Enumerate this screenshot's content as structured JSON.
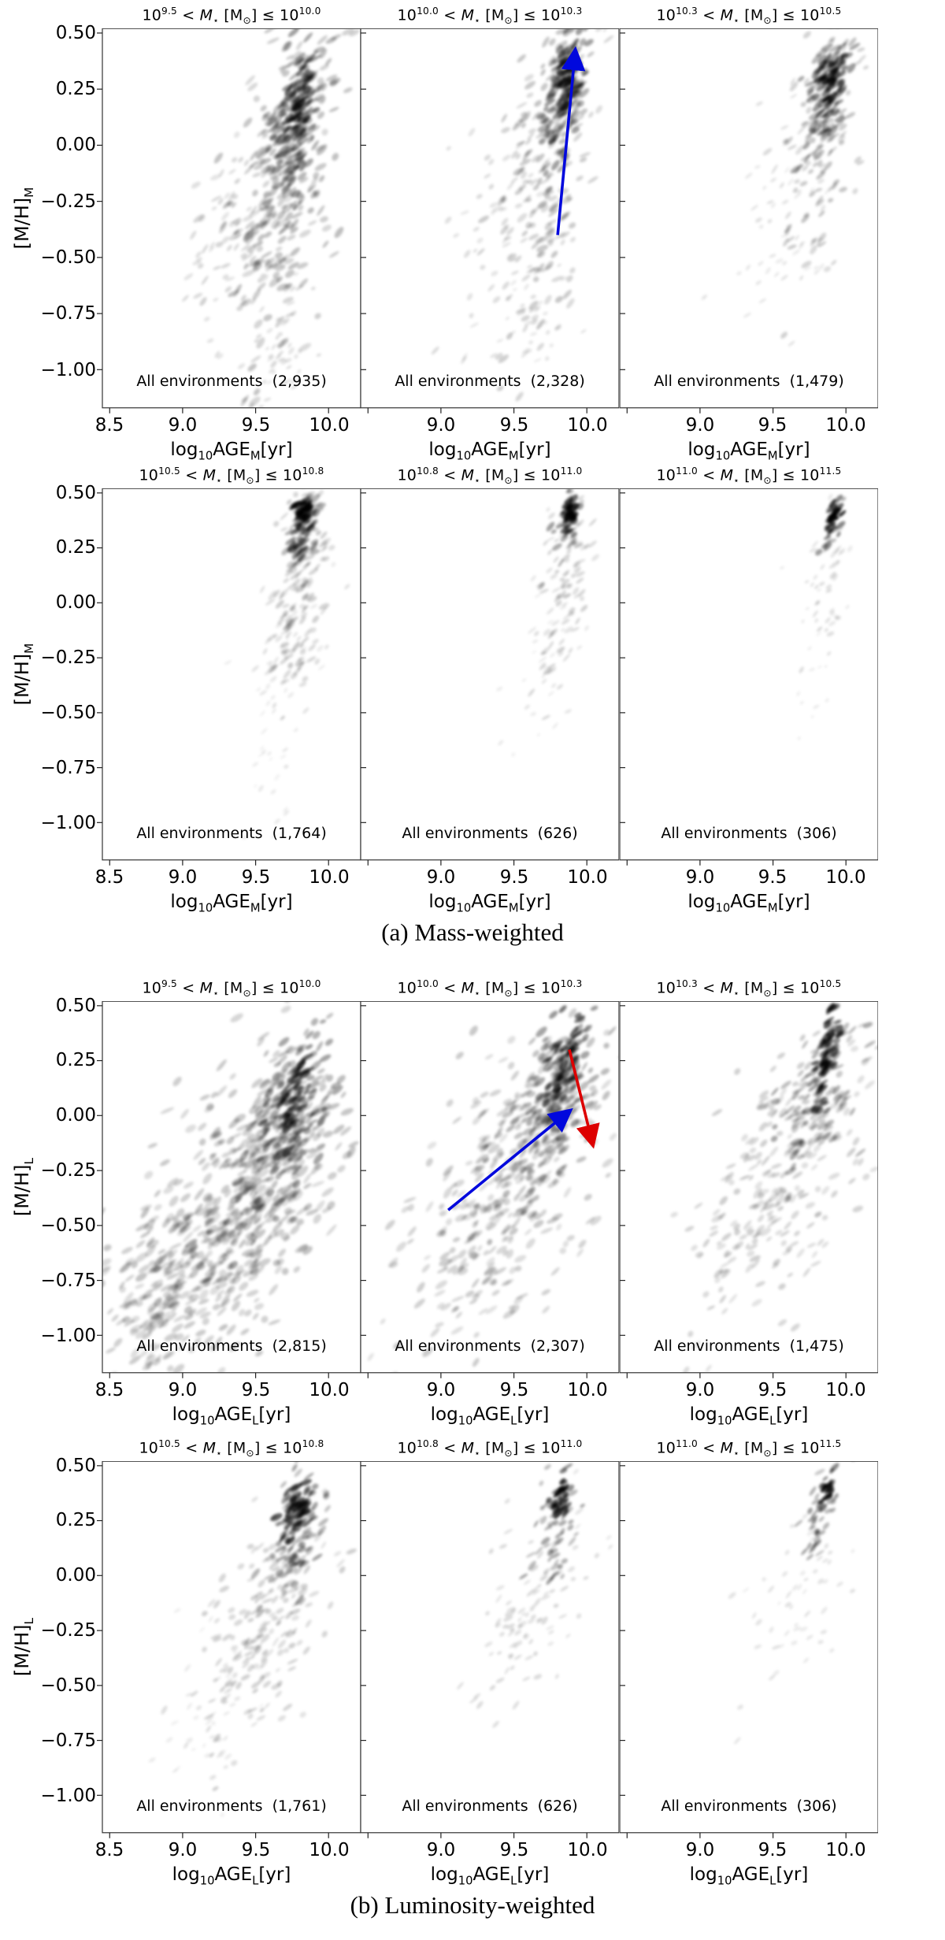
{
  "chart_data": {
    "type": "density-contour-grid",
    "annotation_label": "All environments",
    "axes": {
      "x_range": [
        8.45,
        10.22
      ],
      "y_range": [
        -1.17,
        0.52
      ],
      "x_ticks_first": [
        "8.5",
        "9.0",
        "9.5",
        "10.0"
      ],
      "x_tick_values_first": [
        8.5,
        9.0,
        9.5,
        10.0
      ],
      "x_ticks_rest": [
        "9.0",
        "9.5",
        "10.0"
      ],
      "x_tick_values_rest": [
        9.0,
        9.5,
        10.0
      ],
      "y_ticks": [
        "0.50",
        "0.25",
        "0.00",
        "−0.25",
        "−0.50",
        "−0.75",
        "−1.00"
      ],
      "y_tick_values": [
        0.5,
        0.25,
        0.0,
        -0.25,
        -0.5,
        -0.75,
        -1.0
      ]
    },
    "arrow_colors": {
      "blue": "#0008dd",
      "red": "#dd0000"
    },
    "groups": [
      {
        "id": "a",
        "caption": "(a) Mass-weighted",
        "ylabel": {
          "main": "[M/H]",
          "sub": "M"
        },
        "xlabel": {
          "log": "log",
          "logsub": "10",
          "age": "AGE",
          "agesub": "M",
          "unit": "[yr]"
        },
        "rows": [
          {
            "panels": [
              {
                "title": "10^9.5 < M⋆[M⊙] ≤ 10^10.0",
                "mass_lo": "9.5",
                "mass_hi": "10.0",
                "annotation_count": "(2,935)",
                "seed": 11,
                "arrows": [],
                "clusters": [
                  [
                    9.7,
                    -0.12,
                    0.17,
                    0.42,
                    0.5,
                    260,
                    6,
                    0.1
                  ],
                  [
                    9.38,
                    -0.38,
                    0.2,
                    0.24,
                    0.3,
                    100,
                    5,
                    0.07
                  ],
                  [
                    9.67,
                    -0.88,
                    0.1,
                    0.16,
                    0.3,
                    50,
                    4,
                    0.06
                  ],
                  [
                    9.77,
                    0.1,
                    0.09,
                    0.22,
                    0.5,
                    130,
                    6,
                    0.15
                  ],
                  [
                    9.79,
                    0.17,
                    0.05,
                    0.1,
                    0.5,
                    60,
                    6,
                    0.2
                  ]
                ]
              },
              {
                "title": "10^10.0 < M⋆[M⊙] ≤ 10^10.3",
                "mass_lo": "10.0",
                "mass_hi": "10.3",
                "annotation_count": "(2,328)",
                "seed": 22,
                "arrows": [
                  {
                    "color": "#0008dd",
                    "x1": 9.8,
                    "y1": -0.4,
                    "x2": 9.92,
                    "y2": 0.42
                  }
                ],
                "clusters": [
                  [
                    9.72,
                    -0.08,
                    0.17,
                    0.4,
                    0.5,
                    210,
                    5.5,
                    0.09
                  ],
                  [
                    9.45,
                    -0.35,
                    0.18,
                    0.24,
                    0.3,
                    75,
                    4.5,
                    0.06
                  ],
                  [
                    9.62,
                    -0.82,
                    0.12,
                    0.14,
                    0.3,
                    35,
                    4,
                    0.05
                  ],
                  [
                    9.84,
                    0.22,
                    0.08,
                    0.16,
                    0.5,
                    110,
                    6,
                    0.16
                  ],
                  [
                    9.86,
                    0.3,
                    0.045,
                    0.09,
                    0.5,
                    50,
                    6,
                    0.22
                  ]
                ]
              },
              {
                "title": "10^10.3 < M⋆[M⊙] ≤ 10^10.5",
                "mass_lo": "10.3",
                "mass_hi": "10.5",
                "annotation_count": "(1,479)",
                "seed": 33,
                "arrows": [],
                "clusters": [
                  [
                    9.82,
                    0.02,
                    0.14,
                    0.3,
                    0.5,
                    150,
                    5,
                    0.09
                  ],
                  [
                    9.55,
                    -0.3,
                    0.17,
                    0.25,
                    0.3,
                    55,
                    4,
                    0.05
                  ],
                  [
                    9.88,
                    0.24,
                    0.07,
                    0.13,
                    0.5,
                    85,
                    6,
                    0.15
                  ],
                  [
                    9.9,
                    0.31,
                    0.04,
                    0.07,
                    0.5,
                    45,
                    6,
                    0.23
                  ]
                ]
              }
            ]
          },
          {
            "panels": [
              {
                "title": "10^10.5 < M⋆[M⊙] ≤ 10^10.8",
                "mass_lo": "10.5",
                "mass_hi": "10.8",
                "annotation_count": "(1,764)",
                "seed": 44,
                "arrows": [],
                "clusters": [
                  [
                    9.8,
                    0.02,
                    0.1,
                    0.26,
                    0.45,
                    150,
                    5,
                    0.08
                  ],
                  [
                    9.68,
                    -0.28,
                    0.13,
                    0.2,
                    0.3,
                    45,
                    4,
                    0.045
                  ],
                  [
                    9.6,
                    -0.75,
                    0.09,
                    0.22,
                    0.2,
                    22,
                    3.5,
                    0.035
                  ],
                  [
                    9.82,
                    0.33,
                    0.05,
                    0.09,
                    0.4,
                    60,
                    6,
                    0.17
                  ],
                  [
                    9.82,
                    0.41,
                    0.028,
                    0.035,
                    0.3,
                    30,
                    6,
                    0.32
                  ]
                ]
              },
              {
                "title": "10^10.8 < M⋆[M⊙] ≤ 10^11.0",
                "mass_lo": "10.8",
                "mass_hi": "11.0",
                "annotation_count": "(626)",
                "seed": 55,
                "arrows": [],
                "clusters": [
                  [
                    9.84,
                    0.08,
                    0.09,
                    0.22,
                    0.45,
                    95,
                    4.5,
                    0.07
                  ],
                  [
                    9.7,
                    -0.35,
                    0.12,
                    0.2,
                    0.3,
                    28,
                    3.5,
                    0.04
                  ],
                  [
                    9.87,
                    0.34,
                    0.04,
                    0.07,
                    0.4,
                    35,
                    5,
                    0.18
                  ],
                  [
                    9.88,
                    0.41,
                    0.025,
                    0.032,
                    0.3,
                    26,
                    5.5,
                    0.32
                  ]
                ]
              },
              {
                "title": "10^11.0 < M⋆[M⊙] ≤ 10^11.5",
                "mass_lo": "11.0",
                "mass_hi": "11.5",
                "annotation_count": "(306)",
                "seed": 66,
                "arrows": [],
                "clusters": [
                  [
                    9.88,
                    0.13,
                    0.075,
                    0.16,
                    0.45,
                    48,
                    4,
                    0.06
                  ],
                  [
                    9.76,
                    -0.33,
                    0.1,
                    0.17,
                    0.3,
                    14,
                    3,
                    0.035
                  ],
                  [
                    9.91,
                    0.35,
                    0.035,
                    0.06,
                    0.4,
                    26,
                    5,
                    0.18
                  ],
                  [
                    9.92,
                    0.41,
                    0.022,
                    0.03,
                    0.3,
                    22,
                    5,
                    0.33
                  ]
                ]
              }
            ]
          }
        ]
      },
      {
        "id": "b",
        "caption": "(b) Luminosity-weighted",
        "ylabel": {
          "main": "[M/H]",
          "sub": "L"
        },
        "xlabel": {
          "log": "log",
          "logsub": "10",
          "age": "AGE",
          "agesub": "L",
          "unit": "[yr]"
        },
        "rows": [
          {
            "panels": [
              {
                "title": "10^9.5 < M⋆[M⊙] ≤ 10^10.0",
                "mass_lo": "9.5",
                "mass_hi": "10.0",
                "annotation_count": "(2,815)",
                "seed": 77,
                "arrows": [],
                "clusters": [
                  [
                    9.3,
                    -0.48,
                    0.4,
                    0.36,
                    0.55,
                    420,
                    6.5,
                    0.09
                  ],
                  [
                    9.6,
                    -0.2,
                    0.25,
                    0.28,
                    0.55,
                    200,
                    6,
                    0.1
                  ],
                  [
                    9.75,
                    0.05,
                    0.14,
                    0.22,
                    0.5,
                    150,
                    6,
                    0.14
                  ],
                  [
                    9.77,
                    0.08,
                    0.06,
                    0.13,
                    0.5,
                    55,
                    6,
                    0.22
                  ],
                  [
                    8.9,
                    -0.8,
                    0.22,
                    0.2,
                    0.4,
                    110,
                    6,
                    0.08
                  ]
                ]
              },
              {
                "title": "10^10.0 < M⋆[M⊙] ≤ 10^10.3",
                "mass_lo": "10.0",
                "mass_hi": "10.3",
                "annotation_count": "(2,307)",
                "seed": 88,
                "arrows": [
                  {
                    "color": "#0008dd",
                    "x1": 9.05,
                    "y1": -0.43,
                    "x2": 9.88,
                    "y2": 0.02
                  },
                  {
                    "color": "#dd0000",
                    "x1": 9.88,
                    "y1": 0.3,
                    "x2": 10.04,
                    "y2": -0.13
                  }
                ],
                "clusters": [
                  [
                    9.42,
                    -0.38,
                    0.33,
                    0.33,
                    0.55,
                    330,
                    6,
                    0.08
                  ],
                  [
                    9.72,
                    -0.02,
                    0.18,
                    0.22,
                    0.5,
                    140,
                    5.5,
                    0.11
                  ],
                  [
                    9.82,
                    0.15,
                    0.1,
                    0.16,
                    0.5,
                    90,
                    6,
                    0.16
                  ],
                  [
                    9.86,
                    0.24,
                    0.05,
                    0.1,
                    0.5,
                    45,
                    6,
                    0.24
                  ]
                ]
              },
              {
                "title": "10^10.3 < M⋆[M⊙] ≤ 10^10.5",
                "mass_lo": "10.3",
                "mass_hi": "10.5",
                "annotation_count": "(1,475)",
                "seed": 99,
                "arrows": [],
                "clusters": [
                  [
                    9.5,
                    -0.32,
                    0.3,
                    0.3,
                    0.55,
                    230,
                    5.5,
                    0.075
                  ],
                  [
                    9.78,
                    0.08,
                    0.14,
                    0.18,
                    0.5,
                    110,
                    5.5,
                    0.13
                  ],
                  [
                    9.86,
                    0.26,
                    0.055,
                    0.1,
                    0.5,
                    55,
                    6,
                    0.25
                  ]
                ]
              }
            ]
          },
          {
            "panels": [
              {
                "title": "10^10.5 < M⋆[M⊙] ≤ 10^10.8",
                "mass_lo": "10.5",
                "mass_hi": "10.8",
                "annotation_count": "(1,761)",
                "seed": 110,
                "arrows": [],
                "clusters": [
                  [
                    9.55,
                    -0.22,
                    0.26,
                    0.27,
                    0.55,
                    185,
                    5,
                    0.075
                  ],
                  [
                    9.2,
                    -0.62,
                    0.18,
                    0.2,
                    0.4,
                    45,
                    4,
                    0.04
                  ],
                  [
                    9.77,
                    0.18,
                    0.1,
                    0.15,
                    0.5,
                    95,
                    5.5,
                    0.15
                  ],
                  [
                    9.79,
                    0.32,
                    0.045,
                    0.07,
                    0.45,
                    48,
                    6,
                    0.27
                  ]
                ]
              },
              {
                "title": "10^10.8 < M⋆[M⊙] ≤ 10^11.0",
                "mass_lo": "10.8",
                "mass_hi": "11.0",
                "annotation_count": "(626)",
                "seed": 121,
                "arrows": [],
                "clusters": [
                  [
                    9.62,
                    -0.15,
                    0.22,
                    0.24,
                    0.55,
                    100,
                    4.5,
                    0.06
                  ],
                  [
                    9.79,
                    0.22,
                    0.085,
                    0.13,
                    0.5,
                    55,
                    5,
                    0.15
                  ],
                  [
                    9.82,
                    0.35,
                    0.035,
                    0.05,
                    0.45,
                    30,
                    5.5,
                    0.28
                  ]
                ]
              },
              {
                "title": "10^11.0 < M⋆[M⊙] ≤ 10^11.5",
                "mass_lo": "11.0",
                "mass_hi": "11.5",
                "annotation_count": "(306)",
                "seed": 132,
                "arrows": [],
                "clusters": [
                  [
                    9.67,
                    -0.1,
                    0.19,
                    0.21,
                    0.55,
                    55,
                    4,
                    0.05
                  ],
                  [
                    9.83,
                    0.27,
                    0.06,
                    0.1,
                    0.5,
                    38,
                    5,
                    0.16
                  ],
                  [
                    9.86,
                    0.38,
                    0.028,
                    0.04,
                    0.45,
                    24,
                    5,
                    0.3
                  ]
                ]
              }
            ]
          }
        ]
      }
    ]
  }
}
